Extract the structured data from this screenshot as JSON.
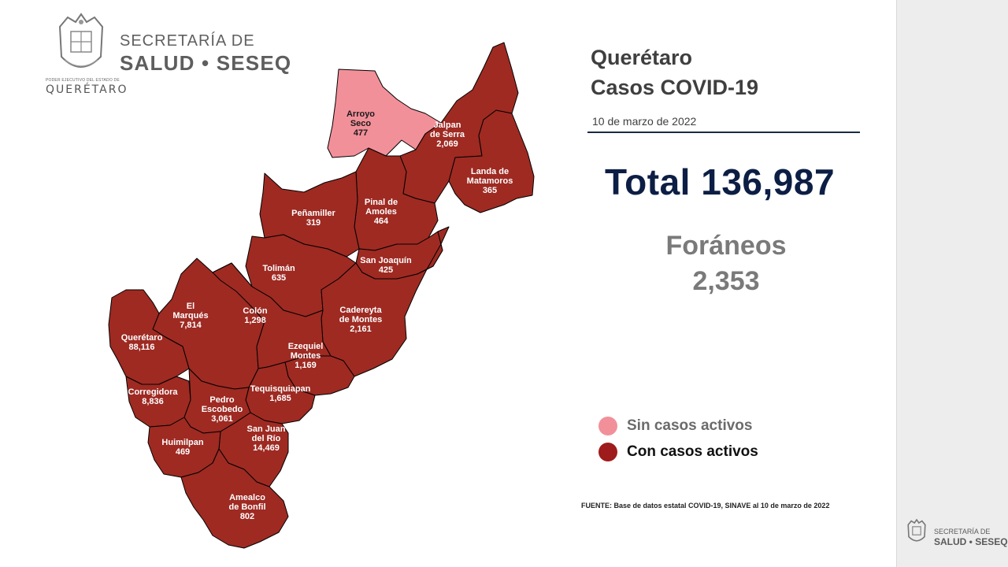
{
  "branding": {
    "org_line1": "SECRETARÍA DE",
    "org_line2": "SALUD • SESEQ",
    "state_small": "PODER EJECUTIVO DEL ESTADO DE",
    "state_name": "QUERÉTARO",
    "mini_line1": "SECRETARÍA DE",
    "mini_line2": "SALUD • SESEQ"
  },
  "header": {
    "title_line1": "Querétaro",
    "title_line2": "Casos COVID-19",
    "date": "10 de marzo de 2022"
  },
  "summary": {
    "total_text": "Total 136,987",
    "foraneos_label": "Foráneos",
    "foraneos_value": "2,353"
  },
  "legend": {
    "no_active_label": "Sin casos activos",
    "active_label": "Con casos activos",
    "no_active_color": "#f2909a",
    "active_color": "#9e1c1c"
  },
  "source": "FUENTE: Base de datos estatal COVID-19, SINAVE al 10 de marzo de 2022",
  "colors": {
    "active_fill": "#9e2a22",
    "inactive_fill": "#f2909a",
    "total_color": "#0d1e45"
  },
  "map": {
    "municipalities": [
      {
        "id": "arroyo-seco",
        "name_lines": [
          "Arroyo",
          "Seco"
        ],
        "cases": "477",
        "status": "sin"
      },
      {
        "id": "jalpan",
        "name_lines": [
          "Jalpan",
          "de Serra"
        ],
        "cases": "2,069",
        "status": "con"
      },
      {
        "id": "landa",
        "name_lines": [
          "Landa de",
          "Matamoros"
        ],
        "cases": "365",
        "status": "con"
      },
      {
        "id": "pinal",
        "name_lines": [
          "Pinal de",
          "Amoles"
        ],
        "cases": "464",
        "status": "con"
      },
      {
        "id": "penamiller",
        "name_lines": [
          "Peñamiller"
        ],
        "cases": "319",
        "status": "con"
      },
      {
        "id": "san-joaquin",
        "name_lines": [
          "San Joaquín"
        ],
        "cases": "425",
        "status": "con"
      },
      {
        "id": "toliman",
        "name_lines": [
          "Tolimán"
        ],
        "cases": "635",
        "status": "con"
      },
      {
        "id": "cadereyta",
        "name_lines": [
          "Cadereyta",
          "de Montes"
        ],
        "cases": "2,161",
        "status": "con"
      },
      {
        "id": "el-marques",
        "name_lines": [
          "El",
          "Marqués"
        ],
        "cases": "7,814",
        "status": "con"
      },
      {
        "id": "colon",
        "name_lines": [
          "Colón"
        ],
        "cases": "1,298",
        "status": "con"
      },
      {
        "id": "queretaro",
        "name_lines": [
          "Querétaro"
        ],
        "cases": "88,116",
        "status": "con"
      },
      {
        "id": "ezequiel",
        "name_lines": [
          "Ezequiel",
          "Montes"
        ],
        "cases": "1,169",
        "status": "con"
      },
      {
        "id": "tequisquiapan",
        "name_lines": [
          "Tequisquiapan"
        ],
        "cases": "1,685",
        "status": "con"
      },
      {
        "id": "corregidora",
        "name_lines": [
          "Corregidora"
        ],
        "cases": "8,836",
        "status": "con"
      },
      {
        "id": "pedro-escobedo",
        "name_lines": [
          "Pedro",
          "Escobedo"
        ],
        "cases": "3,061",
        "status": "con"
      },
      {
        "id": "san-juan",
        "name_lines": [
          "San Juan",
          "del Río"
        ],
        "cases": "14,469",
        "status": "con"
      },
      {
        "id": "huimilpan",
        "name_lines": [
          "Huimilpan"
        ],
        "cases": "469",
        "status": "con"
      },
      {
        "id": "amealco",
        "name_lines": [
          "Amealco",
          "de Bonfil"
        ],
        "cases": "802",
        "status": "con"
      }
    ]
  }
}
